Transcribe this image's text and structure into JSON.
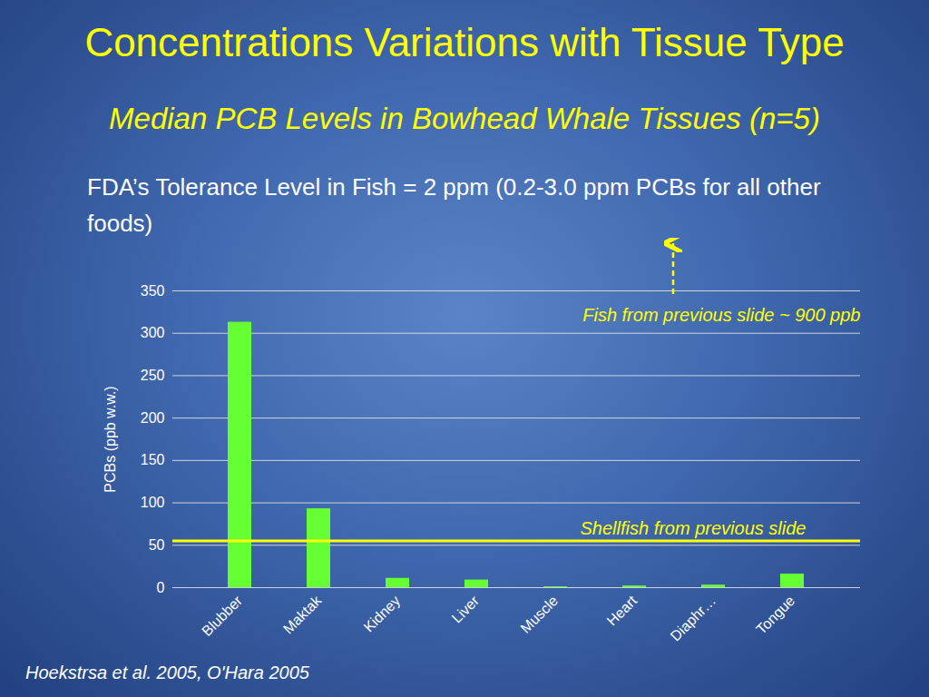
{
  "chart_data": {
    "type": "bar",
    "title": "Concentrations Variations with Tissue Type",
    "subtitle": "Median PCB Levels in Bowhead Whale Tissues (n=5)",
    "note": "FDA’s Tolerance Level in Fish = 2 ppm (0.2-3.0 ppm PCBs for all other foods)",
    "y_label": "PCBs (ppb w.w.)",
    "categories": [
      "Blubber",
      "Maktak",
      "Kidney",
      "Liver",
      "Muscle",
      "Heart",
      "Diaphr…",
      "Tongue"
    ],
    "values": [
      313,
      93,
      11,
      9,
      1,
      2,
      3,
      16
    ],
    "color": "#66ff33",
    "ylim": [
      0,
      350
    ],
    "yticks": [
      0,
      50,
      100,
      150,
      200,
      250,
      300,
      350
    ],
    "grid": true,
    "reference_line": {
      "label": "Shellfish from previous slide",
      "value": 55,
      "color": "#ffff00"
    },
    "annotation": "Fish from previous slide ~ 900 ppb",
    "source": "Hoekstrsa  et al. 2005, O'Hara 2005"
  }
}
